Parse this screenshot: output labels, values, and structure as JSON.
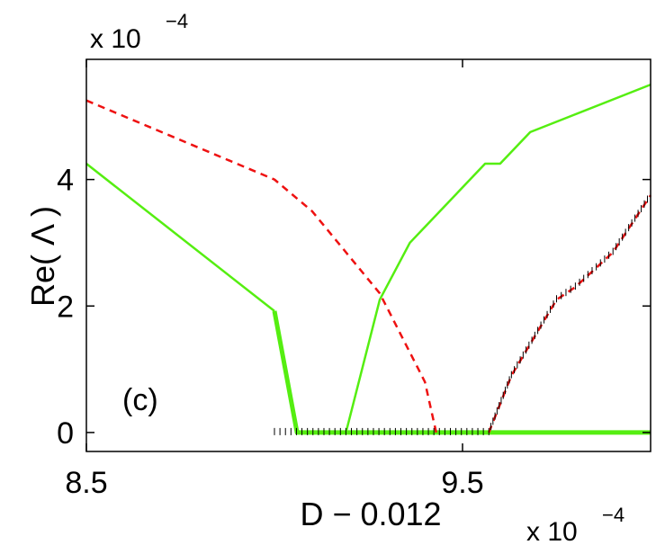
{
  "chart_data": {
    "type": "line",
    "xlabel": "D − 0.012",
    "ylabel": "Re( Λ )",
    "x_multiplier": {
      "base": "x 10",
      "exponent": "−4"
    },
    "y_multiplier": {
      "base": "x 10",
      "exponent": "−4"
    },
    "annotation": "(c)",
    "xlim": [
      8.5,
      10.0
    ],
    "ylim": [
      -0.3,
      5.9
    ],
    "xticks": [
      8.5,
      9.5
    ],
    "xtick_labels": [
      "8.5",
      "9.5"
    ],
    "yticks": [
      0,
      2,
      4
    ],
    "ytick_labels": [
      "0",
      "2",
      "4"
    ],
    "grid": false,
    "series": [
      {
        "color": "#55ee11",
        "style": "solid",
        "width": 2.5,
        "points": [
          [
            8.5,
            4.25
          ],
          [
            9.0,
            1.92
          ]
        ]
      },
      {
        "color": "#55ee11",
        "style": "solid",
        "width": 5,
        "points": [
          [
            9.0,
            1.92
          ],
          [
            9.06,
            0.0
          ],
          [
            10.0,
            0.0
          ]
        ]
      },
      {
        "color": "#55ee11",
        "style": "solid",
        "width": 2.5,
        "points": [
          [
            9.19,
            0.0
          ],
          [
            9.28,
            2.1
          ],
          [
            9.36,
            3.0
          ],
          [
            9.4,
            3.25
          ],
          [
            9.56,
            4.25
          ],
          [
            9.6,
            4.25
          ],
          [
            9.68,
            4.75
          ],
          [
            10.0,
            5.5
          ]
        ]
      },
      {
        "color": "#ee1111",
        "style": "dashed",
        "width": 2.5,
        "points": [
          [
            8.5,
            5.25
          ],
          [
            9.0,
            4.0
          ],
          [
            9.1,
            3.5
          ],
          [
            9.28,
            2.2
          ],
          [
            9.4,
            0.8
          ],
          [
            9.43,
            0.0
          ]
        ]
      },
      {
        "color": "#ee1111",
        "style": "dashed",
        "width": 2.5,
        "points": [
          [
            9.57,
            0.0
          ],
          [
            9.63,
            0.9
          ],
          [
            9.7,
            1.6
          ],
          [
            9.75,
            2.1
          ],
          [
            9.8,
            2.3
          ],
          [
            9.9,
            2.85
          ],
          [
            10.0,
            3.75
          ]
        ]
      },
      {
        "color": "#000000",
        "style": "tick-marks",
        "width": 1,
        "points": [
          [
            9.0,
            0.0
          ],
          [
            9.57,
            0.0
          ],
          [
            9.63,
            0.9
          ],
          [
            9.7,
            1.6
          ],
          [
            9.75,
            2.1
          ],
          [
            9.8,
            2.3
          ],
          [
            9.9,
            2.85
          ],
          [
            10.0,
            3.75
          ]
        ]
      }
    ]
  }
}
